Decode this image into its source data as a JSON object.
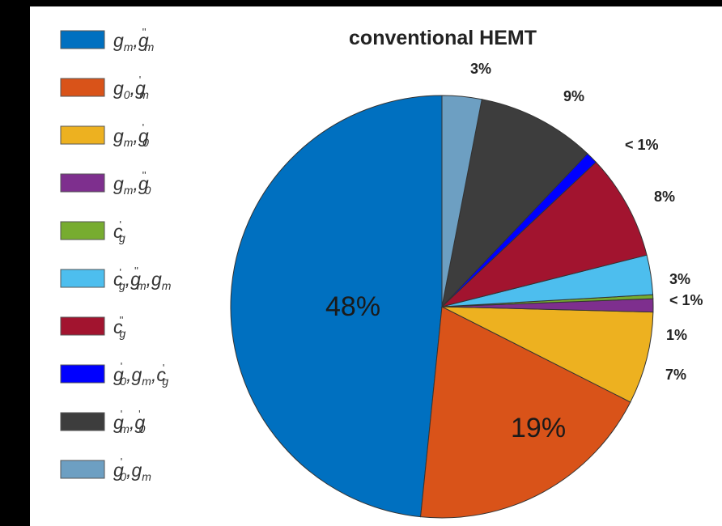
{
  "colors": {
    "blue": "#0070c0",
    "orange": "#d95319",
    "yellow": "#edb120",
    "purple": "#7e2f8e",
    "green": "#77ac30",
    "lightblue": "#4dbeee",
    "crimson": "#a2142f",
    "pureblue": "#0000ff",
    "darkgray": "#3d3d3d",
    "steelblue": "#6d9fc2"
  },
  "chart_data": {
    "type": "pie",
    "title": "conventional HEMT",
    "slices": [
      {
        "label": "g_m·g_m''",
        "value": 48,
        "label_text": "48%",
        "color": "#0070c0"
      },
      {
        "label": "g_0·g_m'",
        "value": 19,
        "label_text": "19%",
        "color": "#d95319"
      },
      {
        "label": "g_m·g_0'",
        "value": 7,
        "label_text": "7%",
        "color": "#edb120"
      },
      {
        "label": "g_m·g_0''",
        "value": 1,
        "label_text": "1%",
        "color": "#7e2f8e"
      },
      {
        "label": "c_g'",
        "value": 0.3,
        "label_text": "< 1%",
        "color": "#77ac30"
      },
      {
        "label": "c_g'·g_m''·g_m",
        "value": 3,
        "label_text": "3%",
        "color": "#4dbeee"
      },
      {
        "label": "c_g''",
        "value": 8,
        "label_text": "8%",
        "color": "#a2142f"
      },
      {
        "label": "g_0'·g_m·c_g'",
        "value": 0.9,
        "label_text": "< 1%",
        "color": "#0000ff"
      },
      {
        "label": "g_m'·g_0'",
        "value": 9,
        "label_text": "9%",
        "color": "#3d3d3d"
      },
      {
        "label": "g_0'·g_m",
        "value": 3,
        "label_text": "3%",
        "color": "#6d9fc2"
      }
    ],
    "legend_position": "left"
  }
}
